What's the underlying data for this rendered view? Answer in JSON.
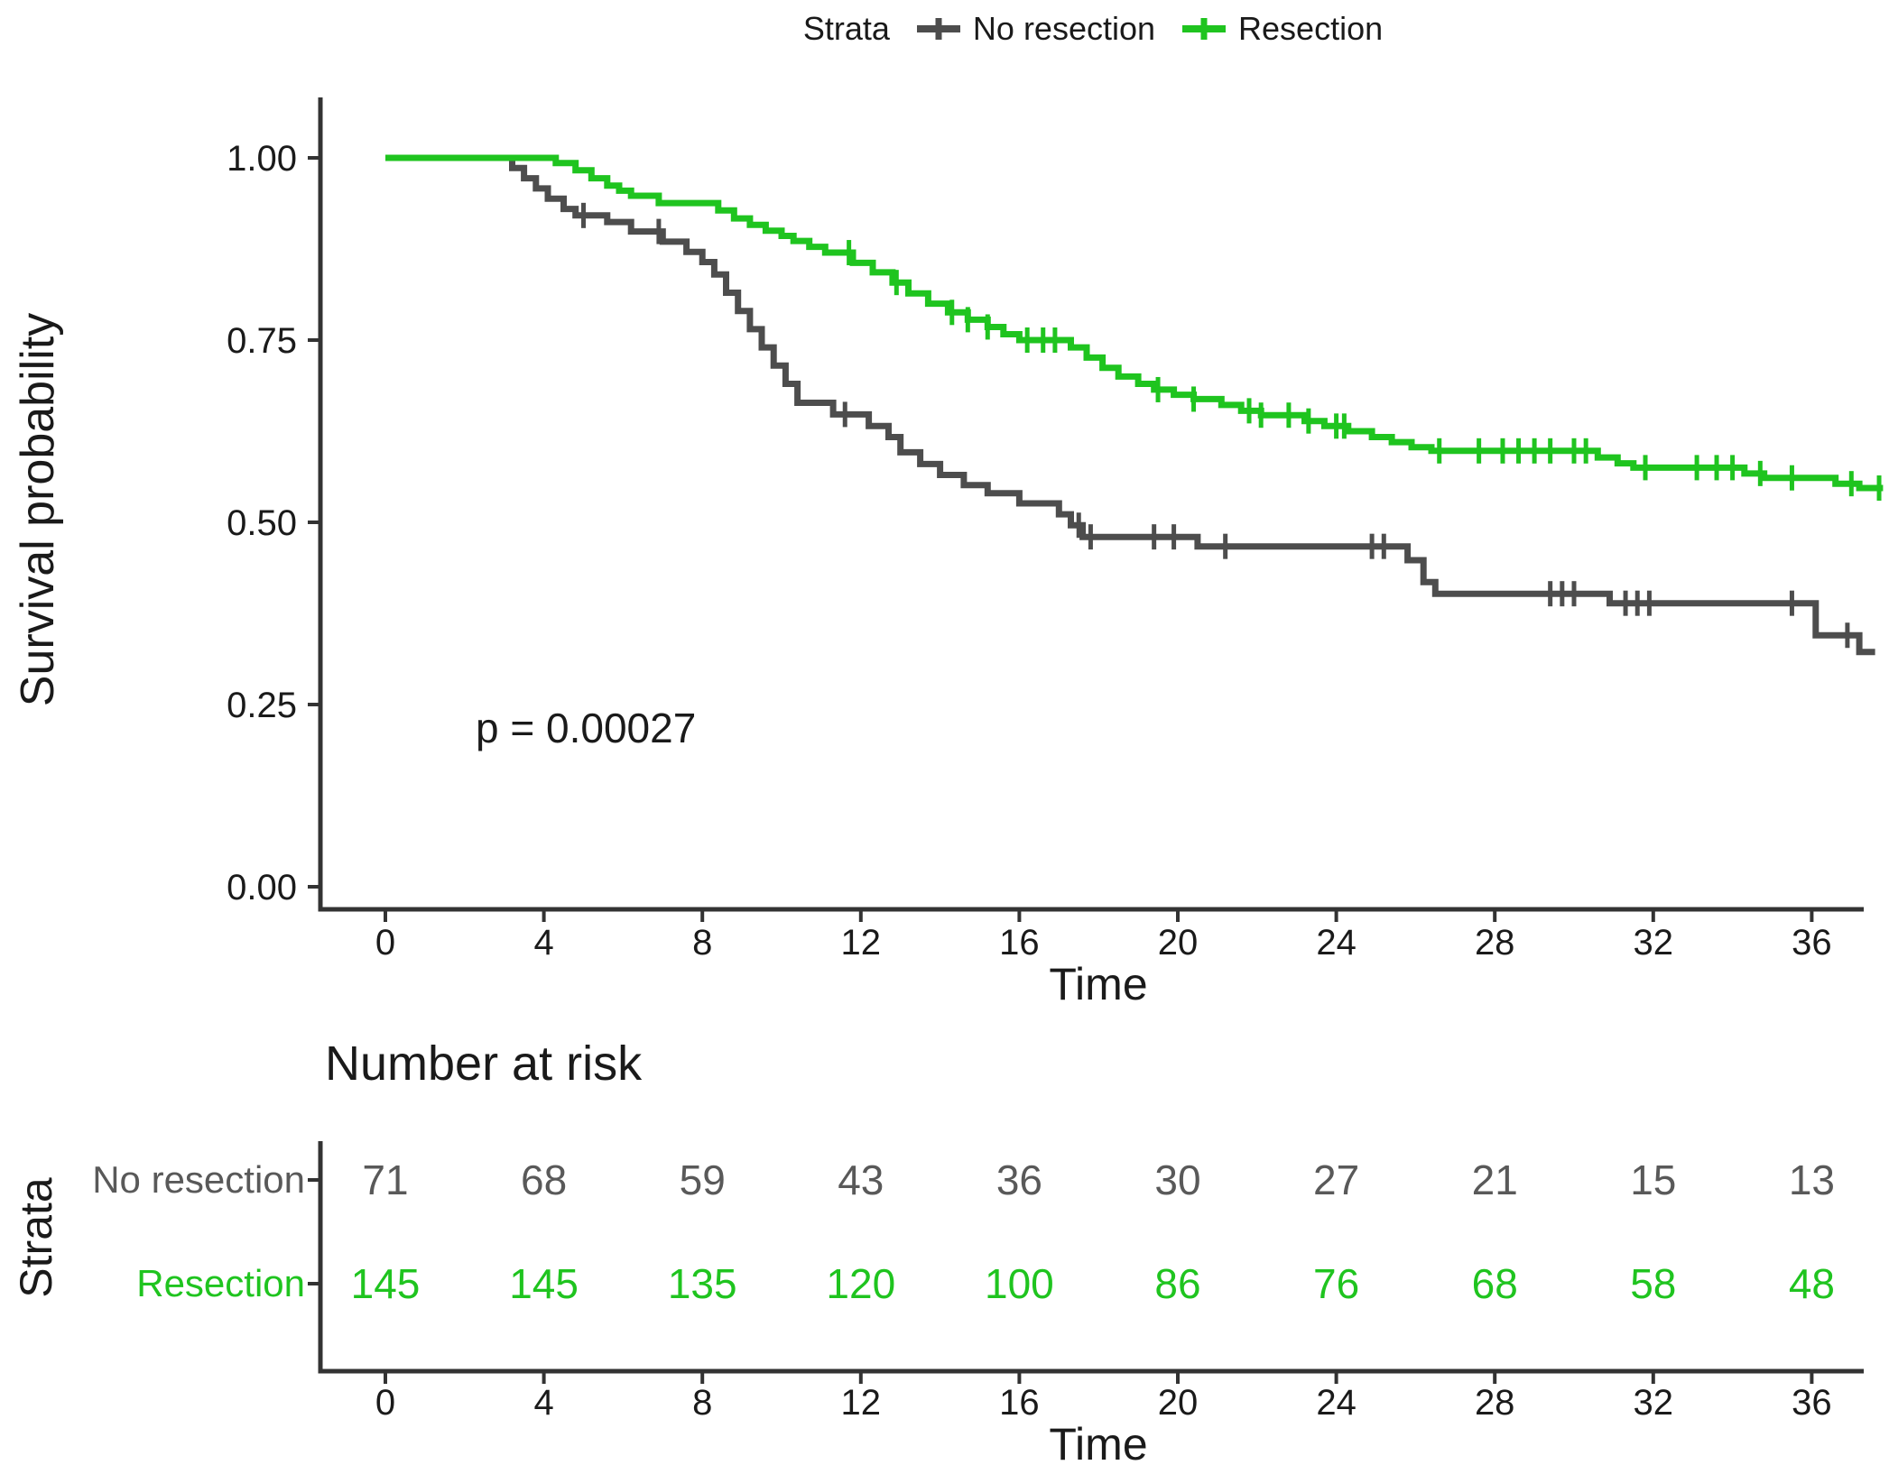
{
  "legend": {
    "title": "Strata",
    "items": [
      {
        "label": "No resection",
        "color": "#4d4d4d"
      },
      {
        "label": "Resection",
        "color": "#1fc41f"
      }
    ]
  },
  "main_plot": {
    "ylabel": "Survival probability",
    "xlabel": "Time",
    "annotation": "p = 0.00027"
  },
  "risk_table": {
    "title": "Number at risk",
    "axis_label": "Strata",
    "xlabel": "Time",
    "rows": [
      {
        "label": "No resection",
        "color": "#595959",
        "values": [
          71,
          68,
          59,
          43,
          36,
          30,
          27,
          21,
          15,
          13
        ]
      },
      {
        "label": "Resection",
        "color": "#1fc41f",
        "values": [
          145,
          145,
          135,
          120,
          100,
          86,
          76,
          68,
          58,
          48
        ]
      }
    ]
  },
  "chart_data": {
    "type": "line",
    "subtype": "kaplan-meier-step",
    "title": "",
    "xlabel": "Time",
    "ylabel": "Survival probability",
    "xlim": [
      0,
      38
    ],
    "ylim": [
      0,
      1
    ],
    "grid": false,
    "legend_position": "top",
    "p_value": "p = 0.00027",
    "x_ticks": [
      0,
      4,
      8,
      12,
      16,
      20,
      24,
      28,
      32,
      36
    ],
    "y_ticks": [
      {
        "value": 0.0,
        "label": "0.00"
      },
      {
        "value": 0.25,
        "label": "0.25"
      },
      {
        "value": 0.5,
        "label": "0.50"
      },
      {
        "value": 0.75,
        "label": "0.75"
      },
      {
        "value": 1.0,
        "label": "1.00"
      }
    ],
    "risk_times": [
      0,
      4,
      8,
      12,
      16,
      20,
      24,
      28,
      32,
      36
    ],
    "series": [
      {
        "name": "No resection",
        "color": "#4d4d4d",
        "end_time": 37.6,
        "steps": [
          [
            0,
            1.0
          ],
          [
            3.2,
            0.986
          ],
          [
            3.5,
            0.972
          ],
          [
            3.8,
            0.958
          ],
          [
            4.1,
            0.944
          ],
          [
            4.5,
            0.93
          ],
          [
            4.8,
            0.921
          ],
          [
            5.6,
            0.912
          ],
          [
            6.2,
            0.899
          ],
          [
            7.0,
            0.885
          ],
          [
            7.6,
            0.871
          ],
          [
            8.0,
            0.857
          ],
          [
            8.3,
            0.84
          ],
          [
            8.6,
            0.815
          ],
          [
            8.9,
            0.79
          ],
          [
            9.2,
            0.765
          ],
          [
            9.5,
            0.74
          ],
          [
            9.8,
            0.715
          ],
          [
            10.1,
            0.69
          ],
          [
            10.4,
            0.664
          ],
          [
            11.3,
            0.648
          ],
          [
            12.2,
            0.632
          ],
          [
            12.7,
            0.617
          ],
          [
            13.0,
            0.596
          ],
          [
            13.5,
            0.58
          ],
          [
            14.0,
            0.565
          ],
          [
            14.6,
            0.551
          ],
          [
            15.2,
            0.54
          ],
          [
            16.0,
            0.526
          ],
          [
            17.0,
            0.511
          ],
          [
            17.3,
            0.496
          ],
          [
            17.6,
            0.48
          ],
          [
            20.5,
            0.467
          ],
          [
            25.8,
            0.448
          ],
          [
            26.2,
            0.418
          ],
          [
            26.5,
            0.402
          ],
          [
            30.9,
            0.389
          ],
          [
            36.1,
            0.345
          ],
          [
            37.2,
            0.322
          ]
        ],
        "censor_times": [
          5.0,
          6.9,
          11.6,
          17.5,
          17.8,
          19.4,
          19.9,
          21.2,
          24.9,
          25.2,
          29.4,
          29.7,
          30.0,
          31.3,
          31.6,
          31.9,
          35.5,
          36.9
        ]
      },
      {
        "name": "Resection",
        "color": "#1fc41f",
        "end_time": 37.8,
        "steps": [
          [
            0,
            1.0
          ],
          [
            4.3,
            0.993
          ],
          [
            4.8,
            0.983
          ],
          [
            5.2,
            0.972
          ],
          [
            5.6,
            0.962
          ],
          [
            5.9,
            0.955
          ],
          [
            6.2,
            0.948
          ],
          [
            6.9,
            0.938
          ],
          [
            8.4,
            0.928
          ],
          [
            8.8,
            0.917
          ],
          [
            9.2,
            0.908
          ],
          [
            9.6,
            0.9
          ],
          [
            10.0,
            0.893
          ],
          [
            10.3,
            0.886
          ],
          [
            10.7,
            0.878
          ],
          [
            11.1,
            0.87
          ],
          [
            11.8,
            0.856
          ],
          [
            12.3,
            0.843
          ],
          [
            12.8,
            0.829
          ],
          [
            13.2,
            0.814
          ],
          [
            13.7,
            0.8
          ],
          [
            14.2,
            0.788
          ],
          [
            14.7,
            0.778
          ],
          [
            15.2,
            0.768
          ],
          [
            15.6,
            0.758
          ],
          [
            16.0,
            0.75
          ],
          [
            17.3,
            0.74
          ],
          [
            17.7,
            0.726
          ],
          [
            18.1,
            0.712
          ],
          [
            18.5,
            0.7
          ],
          [
            19.0,
            0.69
          ],
          [
            19.4,
            0.682
          ],
          [
            19.9,
            0.675
          ],
          [
            20.4,
            0.669
          ],
          [
            21.1,
            0.661
          ],
          [
            21.6,
            0.653
          ],
          [
            22.1,
            0.647
          ],
          [
            23.2,
            0.639
          ],
          [
            23.7,
            0.632
          ],
          [
            24.3,
            0.625
          ],
          [
            24.9,
            0.617
          ],
          [
            25.4,
            0.61
          ],
          [
            25.9,
            0.603
          ],
          [
            26.4,
            0.598
          ],
          [
            30.6,
            0.589
          ],
          [
            31.1,
            0.581
          ],
          [
            31.5,
            0.575
          ],
          [
            34.3,
            0.567
          ],
          [
            34.8,
            0.561
          ],
          [
            36.6,
            0.553
          ],
          [
            37.2,
            0.547
          ]
        ],
        "censor_times": [
          11.7,
          12.9,
          14.3,
          14.7,
          15.2,
          16.2,
          16.6,
          16.9,
          19.5,
          20.4,
          21.8,
          22.1,
          22.8,
          23.3,
          24.0,
          24.2,
          26.6,
          27.6,
          28.2,
          28.6,
          29.0,
          29.4,
          30.0,
          30.3,
          31.8,
          33.1,
          33.6,
          34.0,
          34.7,
          35.5,
          37.0,
          37.7
        ]
      }
    ]
  }
}
